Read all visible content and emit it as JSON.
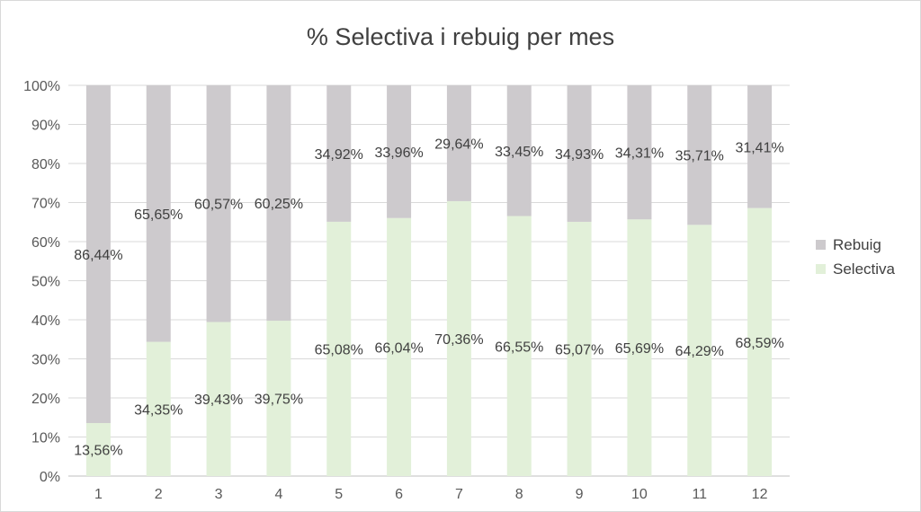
{
  "chart_data": {
    "type": "bar",
    "stacked": true,
    "title": "% Selectiva i rebuig per mes",
    "categories": [
      "1",
      "2",
      "3",
      "4",
      "5",
      "6",
      "7",
      "8",
      "9",
      "10",
      "11",
      "12"
    ],
    "series": [
      {
        "name": "Selectiva",
        "color": "#e2f0d9",
        "values": [
          13.56,
          34.35,
          39.43,
          39.75,
          65.08,
          66.04,
          70.36,
          66.55,
          65.07,
          65.69,
          64.29,
          68.59
        ],
        "labels": [
          "13,56%",
          "34,35%",
          "39,43%",
          "39,75%",
          "65,08%",
          "66,04%",
          "70,36%",
          "66,55%",
          "65,07%",
          "65,69%",
          "64,29%",
          "68,59%"
        ]
      },
      {
        "name": "Rebuig",
        "color": "#cdcacd",
        "values": [
          86.44,
          65.65,
          60.57,
          60.25,
          34.92,
          33.96,
          29.64,
          33.45,
          34.93,
          34.31,
          35.71,
          31.41
        ],
        "labels": [
          "86,44%",
          "65,65%",
          "60,57%",
          "60,25%",
          "34,92%",
          "33,96%",
          "29,64%",
          "33,45%",
          "34,93%",
          "34,31%",
          "35,71%",
          "31,41%"
        ]
      }
    ],
    "yticks": [
      "0%",
      "10%",
      "20%",
      "30%",
      "40%",
      "50%",
      "60%",
      "70%",
      "80%",
      "90%",
      "100%"
    ],
    "ylim": [
      0,
      100
    ],
    "grid": true,
    "legend_position": "right"
  }
}
